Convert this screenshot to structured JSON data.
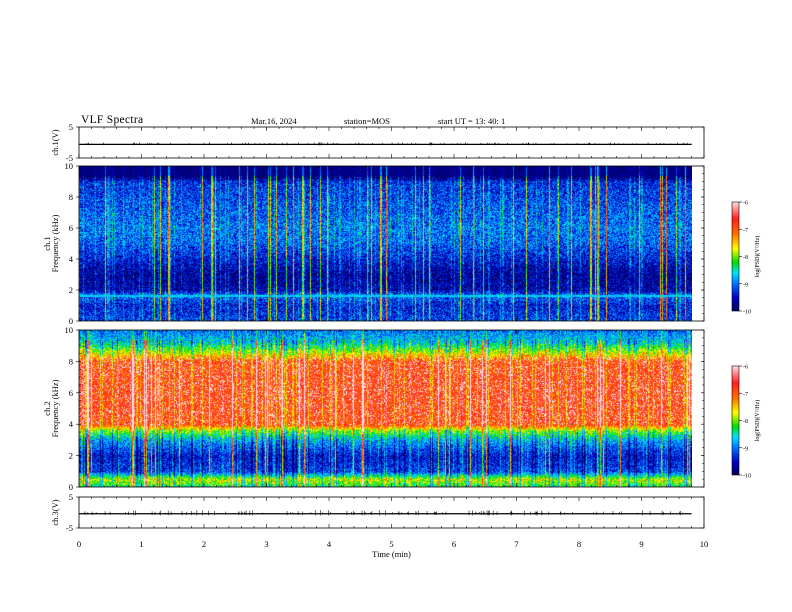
{
  "header": {
    "title": "VLF Spectra",
    "date": "Mar.16, 2024",
    "station": "station=MOS",
    "start": "start  UT =   13: 40: 1"
  },
  "colors": {
    "spec_low": "#00007a",
    "spec_mid": "#0050ff",
    "spec_cyan": "#00e0ff",
    "spec_green": "#00e000",
    "spec_yellow": "#ffff00",
    "spec_red": "#ff2020",
    "spec_white": "#ffffff"
  },
  "chart_data": [
    {
      "type": "line",
      "panel": "ch1-waveform",
      "ylabel": "ch.1(V)",
      "ylim": [
        -5,
        5
      ],
      "yticks": [
        "5",
        "-5"
      ],
      "xlim": [
        0,
        10
      ],
      "series": [
        {
          "x": [
            0,
            9.8
          ],
          "values": [
            -0.6,
            -0.6
          ]
        }
      ]
    },
    {
      "type": "heatmap",
      "panel": "ch1-spectrogram",
      "ylabel": "ch.1",
      "ylabel2": "Frequency (kHz)",
      "ylim": [
        0,
        10
      ],
      "yticks": [
        "0",
        "2",
        "4",
        "6",
        "8",
        "10"
      ],
      "xlim": [
        0,
        10
      ],
      "colorbar": {
        "label": "log(PSD)(V²/Hz)",
        "range": [
          -10,
          -6
        ],
        "ticks": [
          "-6",
          "-7",
          "-8",
          "-9",
          "-10"
        ]
      },
      "level_profile": {
        "freq_khz": [
          0,
          1,
          1.7,
          2,
          3,
          4,
          5,
          6,
          7,
          8,
          9,
          9.4,
          10
        ],
        "log_psd": [
          -9.2,
          -9.4,
          -9.0,
          -9.6,
          -9.7,
          -9.4,
          -9.1,
          -9.0,
          -9.1,
          -9.2,
          -9.3,
          -10,
          -10
        ]
      }
    },
    {
      "type": "heatmap",
      "panel": "ch2-spectrogram",
      "ylabel": "ch.2",
      "ylabel2": "Frequency (kHz)",
      "ylim": [
        0,
        10
      ],
      "yticks": [
        "0",
        "2",
        "4",
        "6",
        "8",
        "10"
      ],
      "xlim": [
        0,
        10
      ],
      "colorbar": {
        "label": "log(PSD)(V²/Hz)",
        "range": [
          -10,
          -6
        ],
        "ticks": [
          "-6",
          "-7",
          "-8",
          "-9",
          "-10"
        ]
      },
      "level_profile": {
        "freq_khz": [
          0,
          0.5,
          1,
          2,
          3,
          3.6,
          4,
          6,
          8,
          8.6,
          9.2,
          10
        ],
        "log_psd": [
          -8.4,
          -7.8,
          -9.2,
          -9.4,
          -8.8,
          -8.0,
          -6.9,
          -6.8,
          -6.9,
          -7.8,
          -8.6,
          -9.0
        ]
      }
    },
    {
      "type": "line",
      "panel": "ch3-waveform",
      "ylabel": "ch.3(V)",
      "ylim": [
        -5,
        5
      ],
      "yticks": [
        "5",
        "-5"
      ],
      "xlim": [
        0,
        10
      ],
      "xlabel": "Time (min)",
      "xticks": [
        "0",
        "1",
        "2",
        "3",
        "4",
        "5",
        "6",
        "7",
        "8",
        "9",
        "10"
      ],
      "series": [
        {
          "x": [
            0,
            9.8
          ],
          "values": [
            -0.4,
            -0.4
          ]
        }
      ]
    }
  ]
}
